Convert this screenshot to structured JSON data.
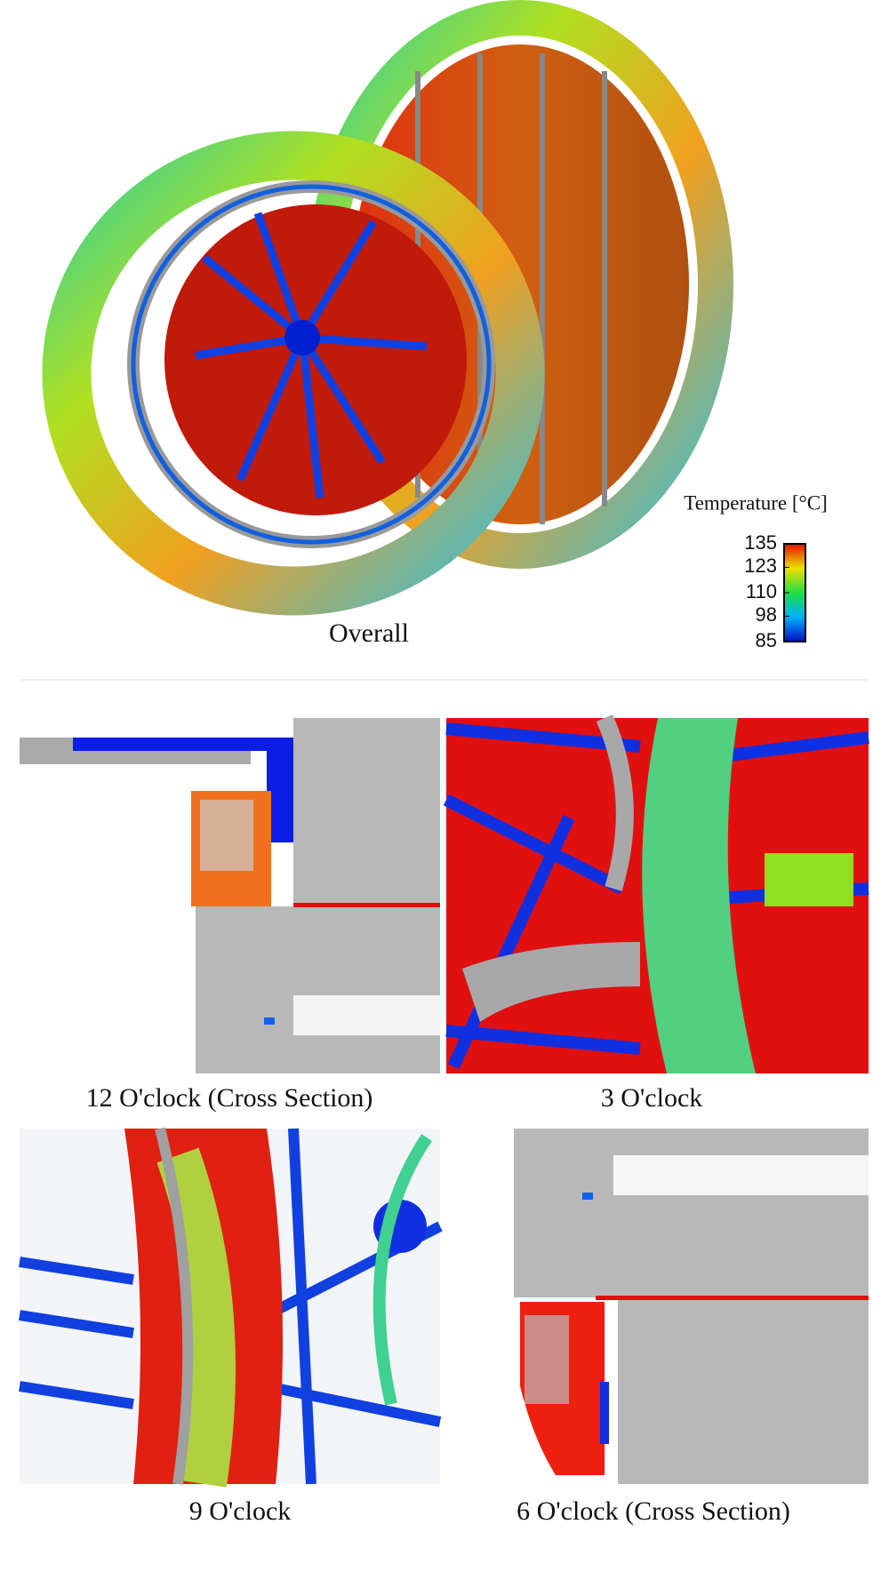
{
  "overall": {
    "caption": "Overall",
    "colorbar": {
      "title": "Temperature [°C]",
      "range": [
        85,
        135
      ],
      "ticks": [
        135,
        123,
        110,
        98,
        85
      ]
    }
  },
  "panels": [
    {
      "caption": "12 O'clock (Cross Section)"
    },
    {
      "caption": "3 O'clock"
    },
    {
      "caption": "9 O'clock"
    },
    {
      "caption": "6 O'clock (Cross Section)"
    }
  ]
}
